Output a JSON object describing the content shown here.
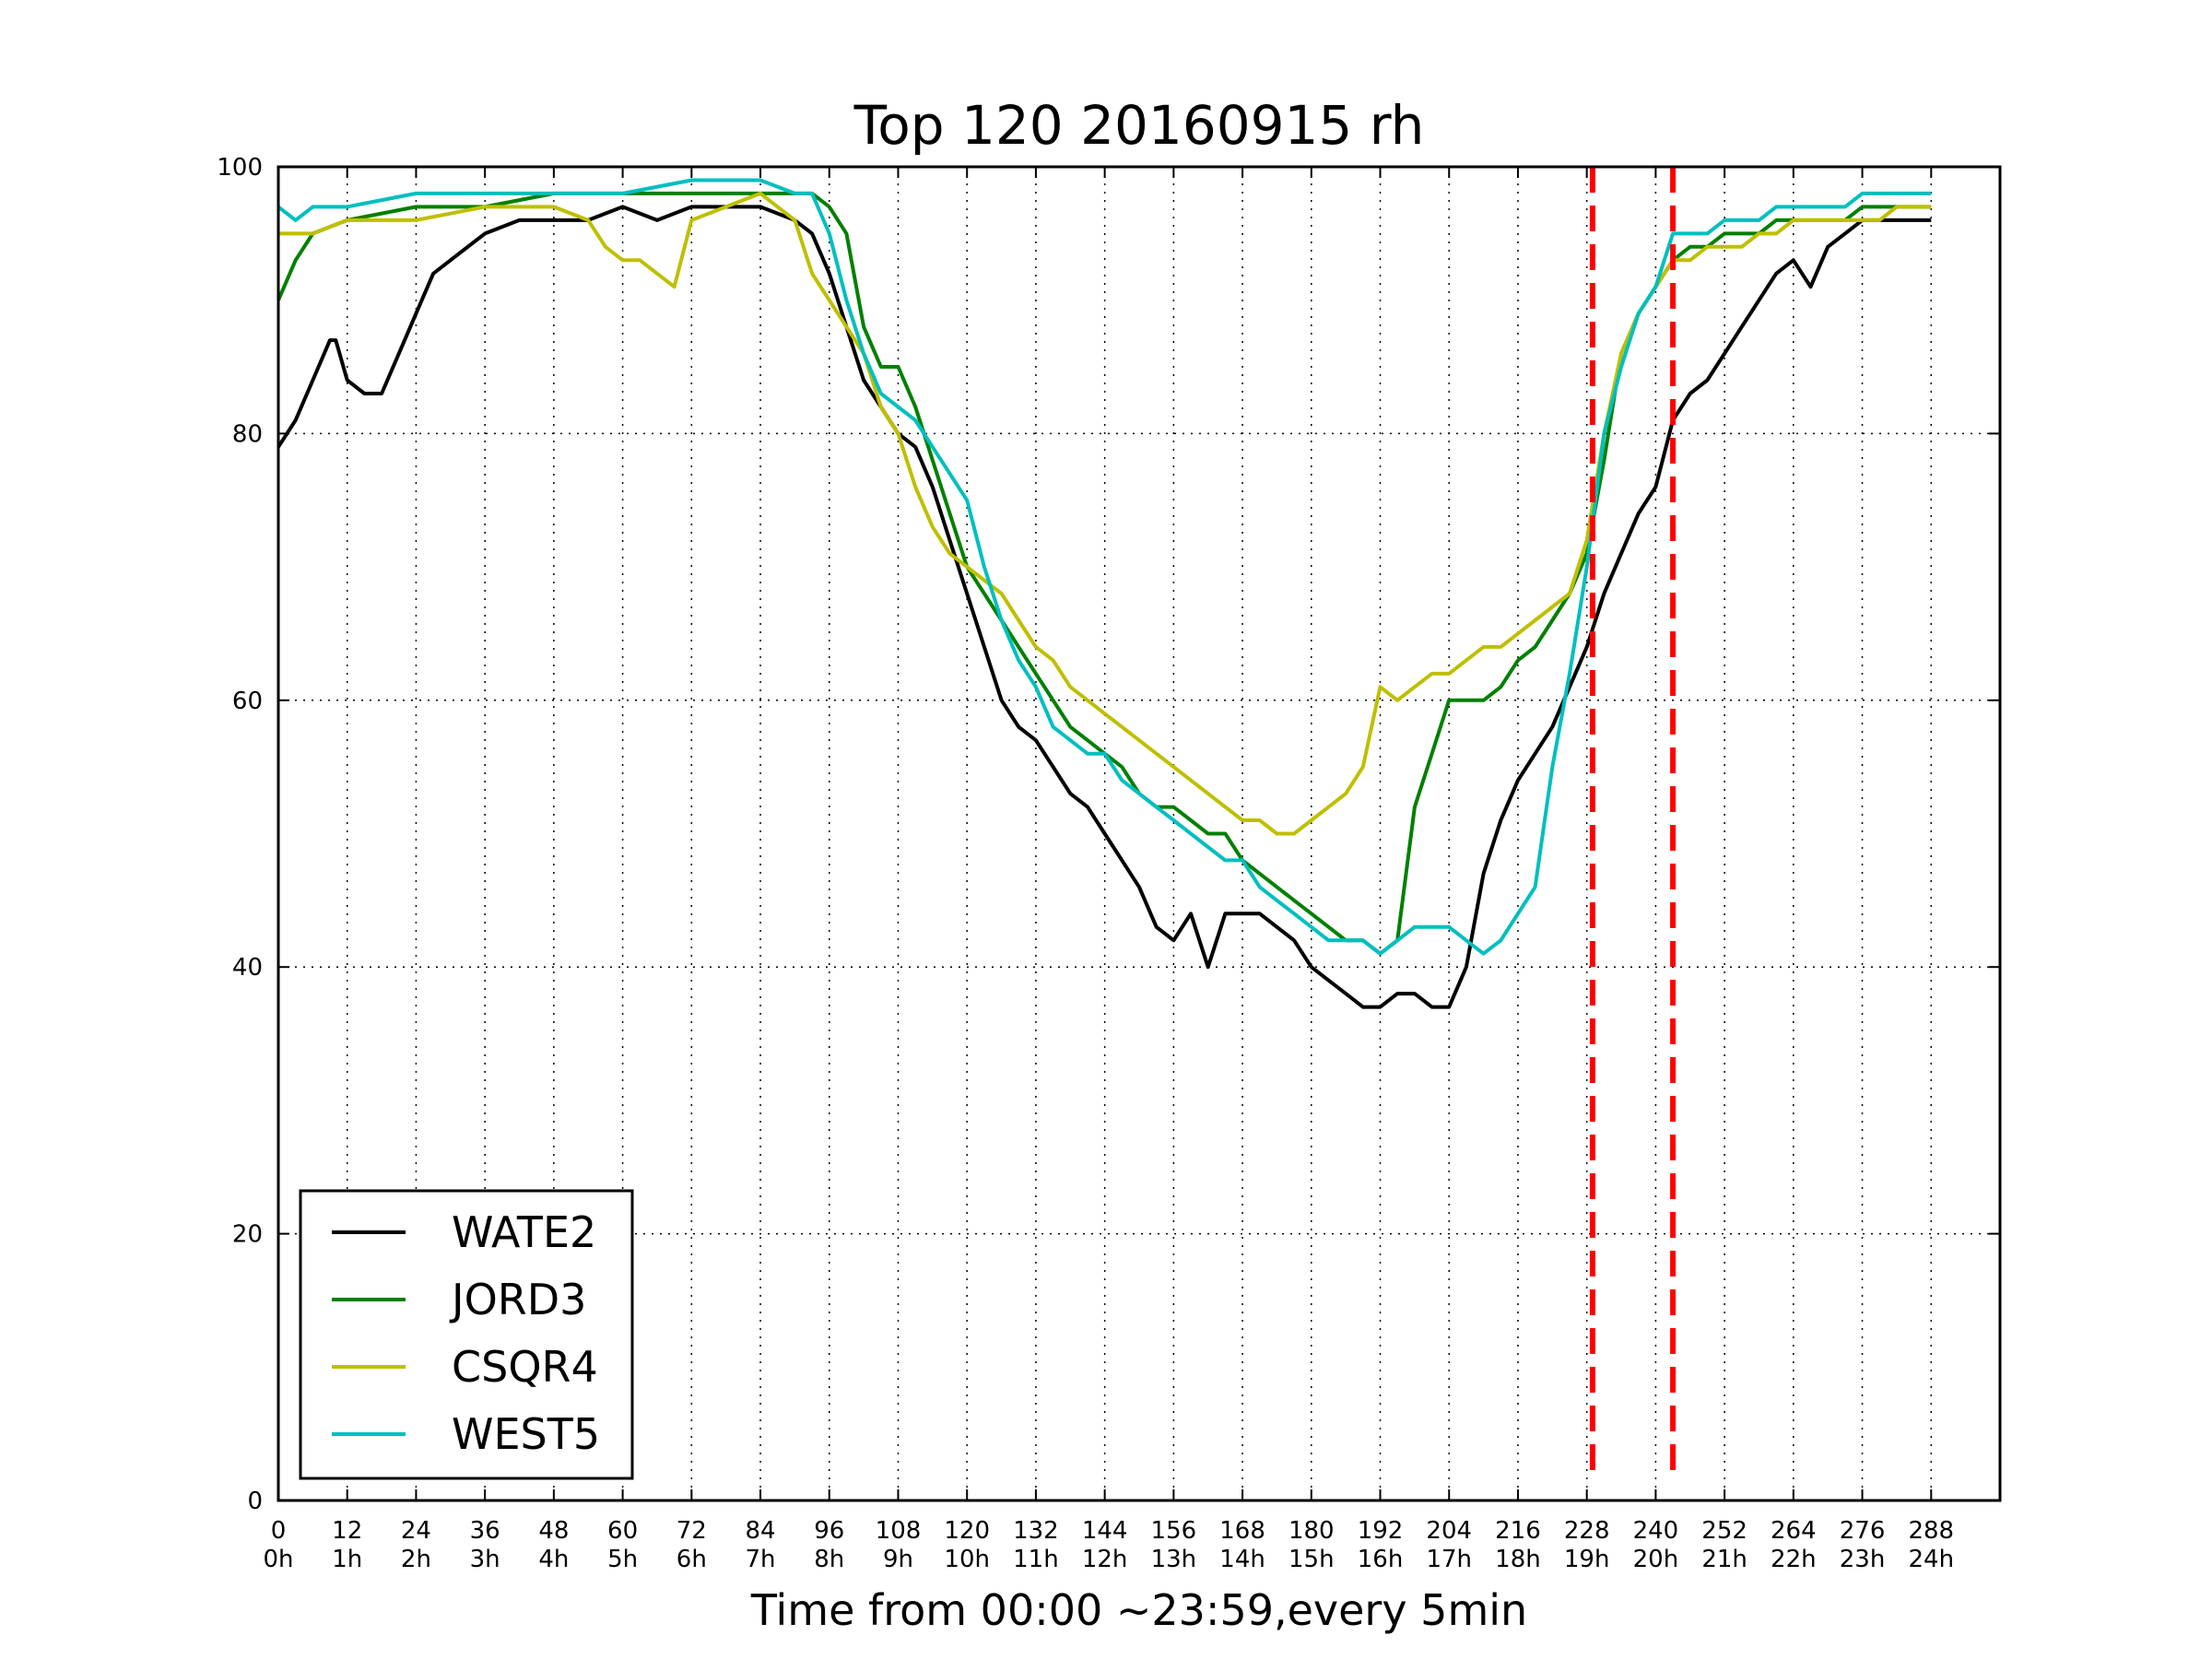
{
  "chart_data": {
    "type": "line",
    "title": "Top 120 20160915 rh",
    "xlabel": "Time from 00:00 ~23:59,every 5min",
    "ylabel": "",
    "xlim": [
      0,
      300
    ],
    "ylim": [
      0,
      100
    ],
    "grid": true,
    "legend_position": "lower-left",
    "x_ticks": [
      {
        "value": 0,
        "label": "0",
        "sublabel": "0h"
      },
      {
        "value": 12,
        "label": "12",
        "sublabel": "1h"
      },
      {
        "value": 24,
        "label": "24",
        "sublabel": "2h"
      },
      {
        "value": 36,
        "label": "36",
        "sublabel": "3h"
      },
      {
        "value": 48,
        "label": "48",
        "sublabel": "4h"
      },
      {
        "value": 60,
        "label": "60",
        "sublabel": "5h"
      },
      {
        "value": 72,
        "label": "72",
        "sublabel": "6h"
      },
      {
        "value": 84,
        "label": "84",
        "sublabel": "7h"
      },
      {
        "value": 96,
        "label": "96",
        "sublabel": "8h"
      },
      {
        "value": 108,
        "label": "108",
        "sublabel": "9h"
      },
      {
        "value": 120,
        "label": "120",
        "sublabel": "10h"
      },
      {
        "value": 132,
        "label": "132",
        "sublabel": "11h"
      },
      {
        "value": 144,
        "label": "144",
        "sublabel": "12h"
      },
      {
        "value": 156,
        "label": "156",
        "sublabel": "13h"
      },
      {
        "value": 168,
        "label": "168",
        "sublabel": "14h"
      },
      {
        "value": 180,
        "label": "180",
        "sublabel": "15h"
      },
      {
        "value": 192,
        "label": "192",
        "sublabel": "16h"
      },
      {
        "value": 204,
        "label": "204",
        "sublabel": "17h"
      },
      {
        "value": 216,
        "label": "216",
        "sublabel": "18h"
      },
      {
        "value": 228,
        "label": "228",
        "sublabel": "19h"
      },
      {
        "value": 240,
        "label": "240",
        "sublabel": "20h"
      },
      {
        "value": 252,
        "label": "252",
        "sublabel": "21h"
      },
      {
        "value": 264,
        "label": "264",
        "sublabel": "22h"
      },
      {
        "value": 276,
        "label": "276",
        "sublabel": "23h"
      },
      {
        "value": 288,
        "label": "288",
        "sublabel": "24h"
      }
    ],
    "y_ticks": [
      0,
      20,
      40,
      60,
      80,
      100
    ],
    "vertical_markers": [
      {
        "x": 229,
        "color": "#ff0000",
        "style": "dashed"
      },
      {
        "x": 243,
        "color": "#ff0000",
        "style": "dashed"
      }
    ],
    "series": [
      {
        "name": "WATE2",
        "color": "#000000",
        "x": [
          0,
          3,
          6,
          9,
          10,
          12,
          15,
          18,
          21,
          24,
          27,
          30,
          36,
          42,
          48,
          54,
          60,
          66,
          72,
          78,
          84,
          90,
          93,
          96,
          99,
          102,
          105,
          108,
          111,
          114,
          117,
          120,
          123,
          126,
          129,
          132,
          135,
          138,
          141,
          144,
          147,
          150,
          153,
          156,
          159,
          162,
          165,
          168,
          171,
          174,
          177,
          180,
          183,
          186,
          189,
          192,
          195,
          198,
          201,
          204,
          207,
          210,
          213,
          216,
          219,
          222,
          225,
          228,
          231,
          234,
          237,
          240,
          243,
          246,
          249,
          252,
          255,
          258,
          261,
          264,
          267,
          270,
          273,
          276,
          279,
          282,
          285,
          288
        ],
        "values": [
          79,
          81,
          84,
          87,
          87,
          84,
          83,
          83,
          86,
          89,
          92,
          93,
          95,
          96,
          96,
          96,
          97,
          96,
          97,
          97,
          97,
          96,
          95,
          92,
          88,
          84,
          82,
          80,
          79,
          76,
          72,
          68,
          64,
          60,
          58,
          57,
          55,
          53,
          52,
          50,
          48,
          46,
          43,
          42,
          44,
          40,
          44,
          44,
          44,
          43,
          42,
          40,
          39,
          38,
          37,
          37,
          38,
          38,
          37,
          37,
          40,
          47,
          51,
          54,
          56,
          58,
          61,
          64,
          68,
          71,
          74,
          76,
          81,
          83,
          84,
          86,
          88,
          90,
          92,
          93,
          91,
          94,
          95,
          96,
          96,
          96,
          96,
          96
        ]
      },
      {
        "name": "JORD3",
        "color": "#008000",
        "x": [
          0,
          3,
          6,
          12,
          24,
          36,
          48,
          60,
          72,
          84,
          90,
          93,
          96,
          99,
          102,
          105,
          108,
          111,
          114,
          117,
          120,
          123,
          126,
          129,
          132,
          135,
          138,
          141,
          144,
          147,
          150,
          153,
          156,
          159,
          162,
          165,
          168,
          171,
          174,
          177,
          180,
          183,
          186,
          189,
          192,
          195,
          198,
          201,
          204,
          207,
          210,
          213,
          216,
          219,
          222,
          225,
          228,
          231,
          234,
          237,
          240,
          243,
          246,
          249,
          252,
          255,
          258,
          261,
          264,
          267,
          270,
          273,
          276,
          279,
          282,
          285,
          288
        ],
        "values": [
          90,
          93,
          95,
          96,
          97,
          97,
          98,
          98,
          98,
          98,
          98,
          98,
          97,
          95,
          88,
          85,
          85,
          82,
          78,
          74,
          70,
          68,
          66,
          64,
          62,
          60,
          58,
          57,
          56,
          55,
          53,
          52,
          52,
          51,
          50,
          50,
          48,
          47,
          46,
          45,
          44,
          43,
          42,
          42,
          41,
          42,
          52,
          56,
          60,
          60,
          60,
          61,
          63,
          64,
          66,
          68,
          71,
          78,
          86,
          89,
          91,
          93,
          94,
          94,
          95,
          95,
          95,
          96,
          96,
          96,
          96,
          96,
          97,
          97,
          97,
          97,
          97
        ]
      },
      {
        "name": "CSQR4",
        "color": "#bfbf00",
        "x": [
          0,
          3,
          6,
          12,
          24,
          36,
          48,
          54,
          57,
          60,
          63,
          66,
          69,
          72,
          78,
          84,
          90,
          93,
          96,
          99,
          102,
          105,
          108,
          111,
          114,
          117,
          120,
          123,
          126,
          129,
          132,
          135,
          138,
          141,
          144,
          147,
          150,
          153,
          156,
          159,
          162,
          165,
          168,
          171,
          174,
          177,
          180,
          183,
          186,
          189,
          192,
          195,
          198,
          201,
          204,
          207,
          210,
          213,
          216,
          219,
          222,
          225,
          228,
          231,
          234,
          237,
          240,
          243,
          246,
          249,
          252,
          255,
          258,
          261,
          264,
          267,
          270,
          273,
          276,
          279,
          282,
          285,
          288
        ],
        "values": [
          95,
          95,
          95,
          96,
          96,
          97,
          97,
          96,
          94,
          93,
          93,
          92,
          91,
          96,
          97,
          98,
          96,
          92,
          90,
          88,
          86,
          82,
          80,
          76,
          73,
          71,
          70,
          69,
          68,
          66,
          64,
          63,
          61,
          60,
          59,
          58,
          57,
          56,
          55,
          54,
          53,
          52,
          51,
          51,
          50,
          50,
          51,
          52,
          53,
          55,
          61,
          60,
          61,
          62,
          62,
          63,
          64,
          64,
          65,
          66,
          67,
          68,
          72,
          80,
          86,
          89,
          91,
          93,
          93,
          94,
          94,
          94,
          95,
          95,
          96,
          96,
          96,
          96,
          96,
          96,
          97,
          97,
          97
        ]
      },
      {
        "name": "WEST5",
        "color": "#00bfbf",
        "x": [
          0,
          3,
          6,
          12,
          24,
          36,
          48,
          60,
          72,
          84,
          90,
          93,
          96,
          99,
          102,
          105,
          108,
          111,
          114,
          117,
          120,
          123,
          126,
          129,
          132,
          135,
          138,
          141,
          144,
          147,
          150,
          153,
          156,
          159,
          162,
          165,
          168,
          171,
          174,
          177,
          180,
          183,
          186,
          189,
          192,
          195,
          198,
          201,
          204,
          207,
          210,
          213,
          216,
          219,
          222,
          225,
          228,
          231,
          234,
          237,
          240,
          243,
          246,
          249,
          252,
          255,
          258,
          261,
          264,
          267,
          270,
          273,
          276,
          279,
          282,
          285,
          288
        ],
        "values": [
          97,
          96,
          97,
          97,
          98,
          98,
          98,
          98,
          99,
          99,
          98,
          98,
          95,
          90,
          86,
          83,
          82,
          81,
          79,
          77,
          75,
          70,
          66,
          63,
          61,
          58,
          57,
          56,
          56,
          54,
          53,
          52,
          51,
          50,
          49,
          48,
          48,
          46,
          45,
          44,
          43,
          42,
          42,
          42,
          41,
          42,
          43,
          43,
          43,
          42,
          41,
          42,
          44,
          46,
          55,
          62,
          70,
          80,
          85,
          89,
          91,
          95,
          95,
          95,
          96,
          96,
          96,
          97,
          97,
          97,
          97,
          97,
          98,
          98,
          98,
          98,
          98
        ]
      }
    ]
  }
}
